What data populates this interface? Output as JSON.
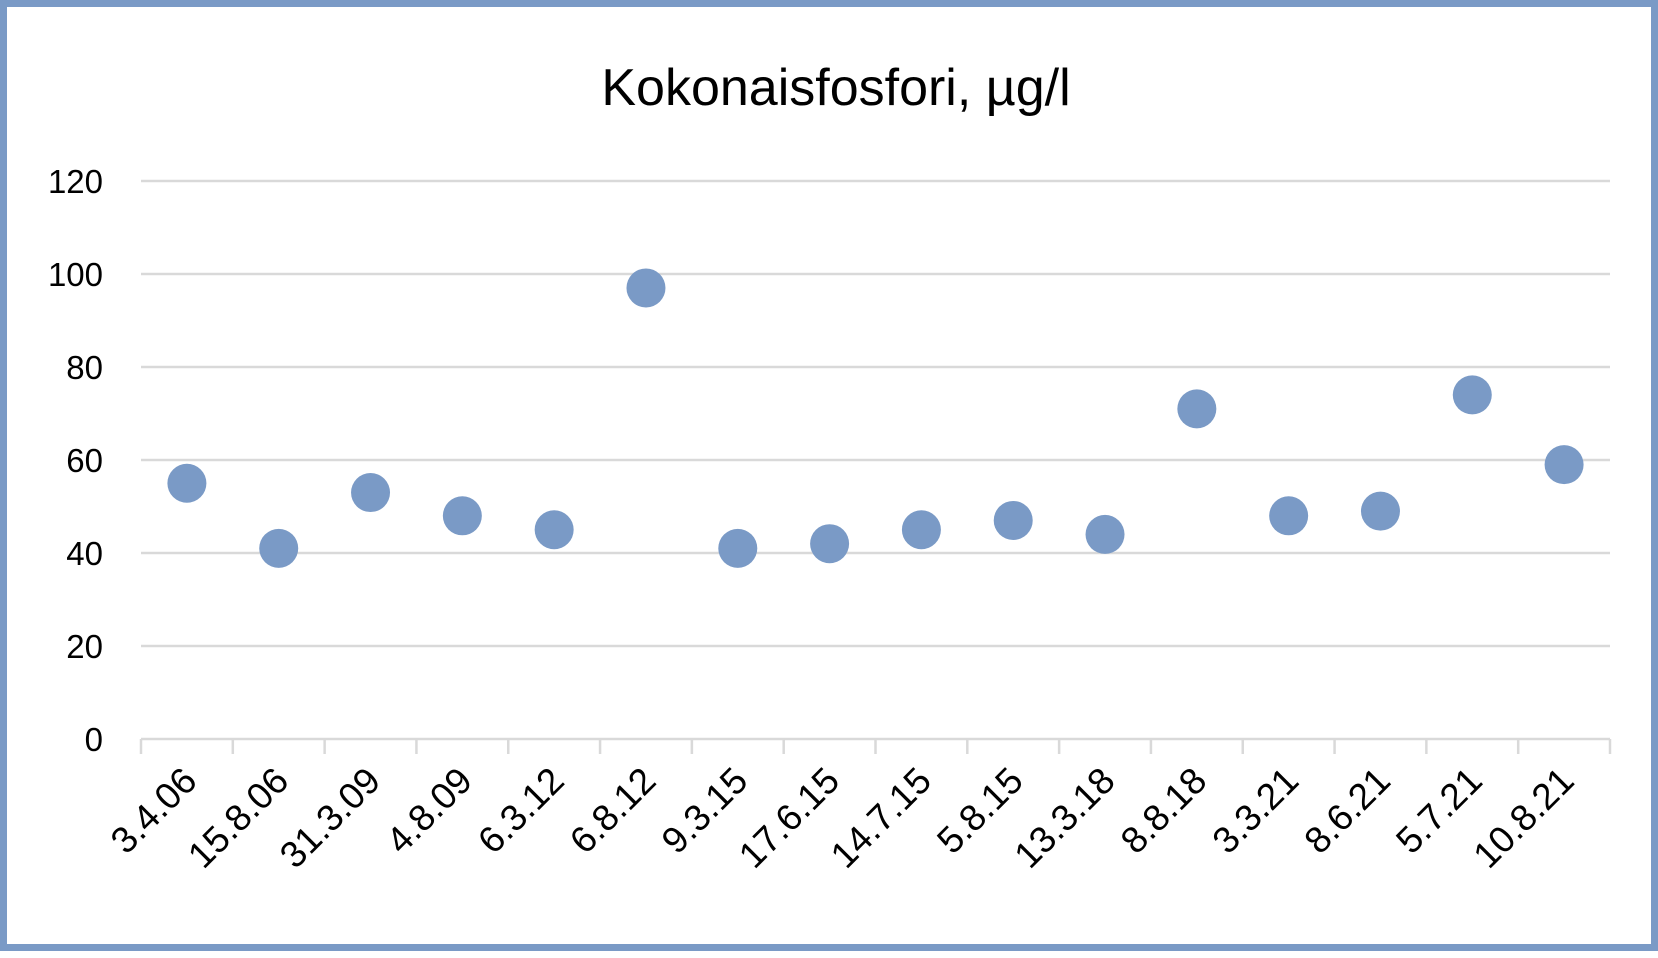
{
  "chart_data": {
    "type": "scatter",
    "title": "Kokonaisfosfori, µg/l",
    "xlabel": "",
    "ylabel": "",
    "categories": [
      "3.4.06",
      "15.8.06",
      "31.3.09",
      "4.8.09",
      "6.3.12",
      "6.8.12",
      "9.3.15",
      "17.6.15",
      "14.7.15",
      "5.8.15",
      "13.3.18",
      "8.8.18",
      "3.3.21",
      "8.6.21",
      "5.7.21",
      "10.8.21"
    ],
    "values": [
      55,
      41,
      53,
      48,
      45,
      97,
      41,
      42,
      45,
      47,
      44,
      71,
      48,
      49,
      74,
      59
    ],
    "ylim": [
      0,
      120
    ],
    "yticks": [
      0,
      20,
      40,
      60,
      80,
      100,
      120
    ],
    "grid": true,
    "legend": "none",
    "colors": {
      "marker": "#7a9ac6",
      "border": "#7a9ac6",
      "grid": "#d9d9d9"
    }
  }
}
